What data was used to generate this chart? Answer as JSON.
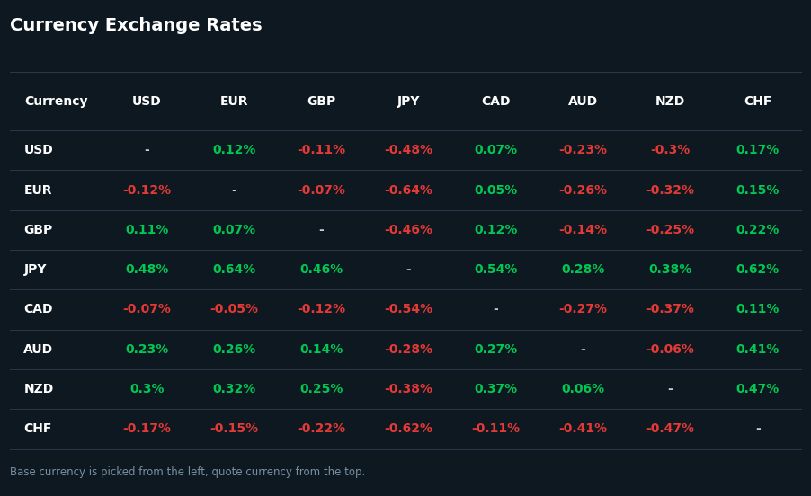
{
  "title": "Currency Exchange Rates",
  "subtitle": "Base currency is picked from the left, quote currency from the top.",
  "currencies": [
    "USD",
    "EUR",
    "GBP",
    "JPY",
    "CAD",
    "AUD",
    "NZD",
    "CHF"
  ],
  "table_data": [
    [
      "-",
      "0.12%",
      "-0.11%",
      "-0.48%",
      "0.07%",
      "-0.23%",
      "-0.3%",
      "0.17%"
    ],
    [
      "-0.12%",
      "-",
      "-0.07%",
      "-0.64%",
      "0.05%",
      "-0.26%",
      "-0.32%",
      "0.15%"
    ],
    [
      "0.11%",
      "0.07%",
      "-",
      "-0.46%",
      "0.12%",
      "-0.14%",
      "-0.25%",
      "0.22%"
    ],
    [
      "0.48%",
      "0.64%",
      "0.46%",
      "-",
      "0.54%",
      "0.28%",
      "0.38%",
      "0.62%"
    ],
    [
      "-0.07%",
      "-0.05%",
      "-0.12%",
      "-0.54%",
      "-",
      "-0.27%",
      "-0.37%",
      "0.11%"
    ],
    [
      "0.23%",
      "0.26%",
      "0.14%",
      "-0.28%",
      "0.27%",
      "-",
      "-0.06%",
      "0.41%"
    ],
    [
      "0.3%",
      "0.32%",
      "0.25%",
      "-0.38%",
      "0.37%",
      "0.06%",
      "-",
      "0.47%"
    ],
    [
      "-0.17%",
      "-0.15%",
      "-0.22%",
      "-0.62%",
      "-0.11%",
      "-0.41%",
      "-0.47%",
      "-"
    ]
  ],
  "bg_color": "#0d1821",
  "header_bg": "#1a2535",
  "row_bg_even": "#131e2b",
  "row_bg_odd": "#0f1923",
  "diagonal_bg": "#263548",
  "header_text": "#ffffff",
  "row_label_text": "#ffffff",
  "positive_color": "#00c853",
  "negative_color": "#e53935",
  "neutral_color": "#cccccc",
  "title_color": "#ffffff",
  "subtitle_color": "#7a8fa0",
  "title_fontsize": 14,
  "header_fontsize": 10,
  "cell_fontsize": 10,
  "subtitle_fontsize": 8.5
}
